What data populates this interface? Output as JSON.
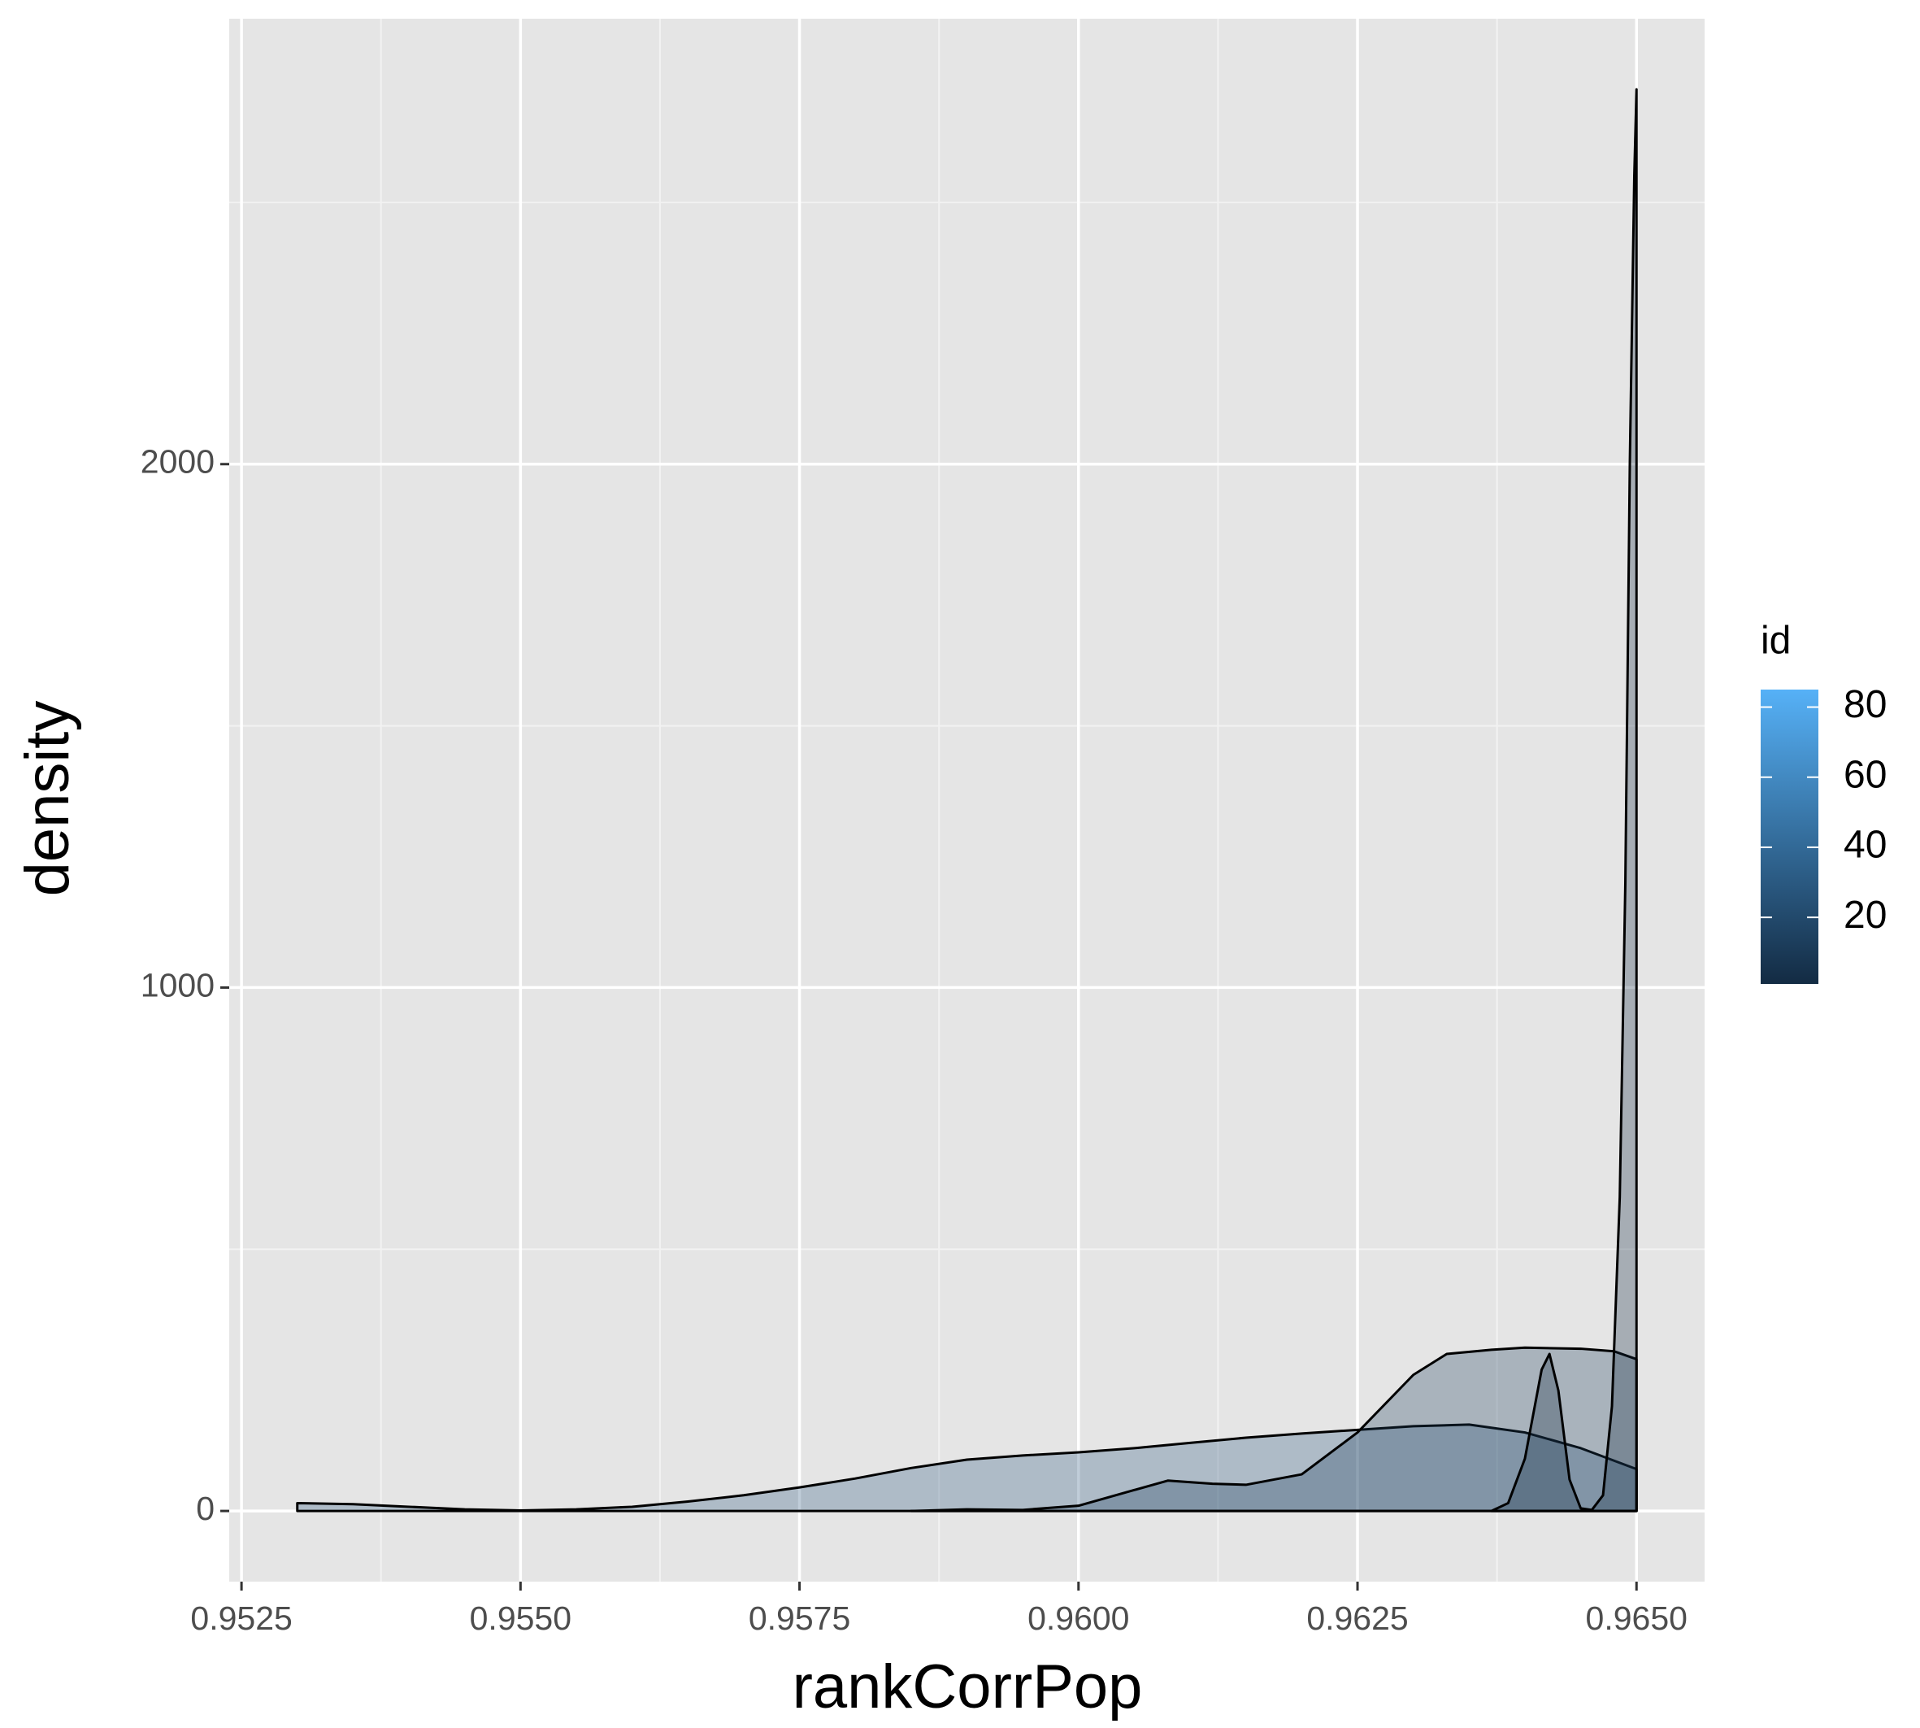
{
  "chart_data": {
    "type": "density",
    "x_label": "rankCorrPop",
    "y_label": "density",
    "xlim": [
      0.95239,
      0.96561
    ],
    "ylim": [
      -135,
      2851
    ],
    "xticks": [
      {
        "value": 0.9525,
        "label": "0.9525"
      },
      {
        "value": 0.955,
        "label": "0.9550"
      },
      {
        "value": 0.9575,
        "label": "0.9575"
      },
      {
        "value": 0.96,
        "label": "0.9600"
      },
      {
        "value": 0.9625,
        "label": "0.9625"
      },
      {
        "value": 0.965,
        "label": "0.9650"
      }
    ],
    "yticks": [
      0,
      1000,
      2000
    ],
    "xminor": [
      0.95375,
      0.95625,
      0.95875,
      0.96125,
      0.96375
    ],
    "yminor": [
      500,
      1500,
      2500
    ],
    "grid": true,
    "alpha": 0.3,
    "series": [
      {
        "color": "#2E5A81",
        "x": [
          0.953,
          0.9535,
          0.954,
          0.9545,
          0.955,
          0.9555,
          0.956,
          0.9565,
          0.957,
          0.9575,
          0.958,
          0.9585,
          0.959,
          0.9595,
          0.96,
          0.9605,
          0.961,
          0.9615,
          0.962,
          0.9625,
          0.963,
          0.9635,
          0.964,
          0.9645,
          0.965
        ],
        "values": [
          15,
          13,
          8,
          3,
          1,
          3,
          8,
          18,
          30,
          45,
          62,
          82,
          98,
          106,
          112,
          120,
          130,
          140,
          148,
          155,
          162,
          165,
          150,
          120,
          80
        ]
      },
      {
        "color": "#1F3F5E",
        "x": [
          0.9585,
          0.959,
          0.9595,
          0.96,
          0.9605,
          0.9608,
          0.9612,
          0.9615,
          0.962,
          0.9625,
          0.963,
          0.9633,
          0.9637,
          0.964,
          0.9645,
          0.9648,
          0.965
        ],
        "values": [
          0,
          3,
          2,
          10,
          40,
          58,
          52,
          50,
          70,
          150,
          260,
          300,
          308,
          312,
          310,
          305,
          290
        ]
      },
      {
        "color": "#132B43",
        "x": [
          0.9637,
          0.96385,
          0.964,
          0.96415,
          0.96422,
          0.9643,
          0.9644,
          0.9645,
          0.9646,
          0.9647,
          0.96478,
          0.96485,
          0.9649,
          0.96494,
          0.96498,
          0.965
        ],
        "values": [
          0,
          15,
          100,
          270,
          300,
          230,
          60,
          5,
          2,
          30,
          200,
          600,
          1200,
          2000,
          2550,
          2716
        ]
      }
    ],
    "legend": {
      "title": "id",
      "lim": [
        1,
        85
      ],
      "ticks": [
        20,
        40,
        60,
        80
      ],
      "colors": [
        "#132B43",
        "#56B1F7"
      ]
    }
  }
}
